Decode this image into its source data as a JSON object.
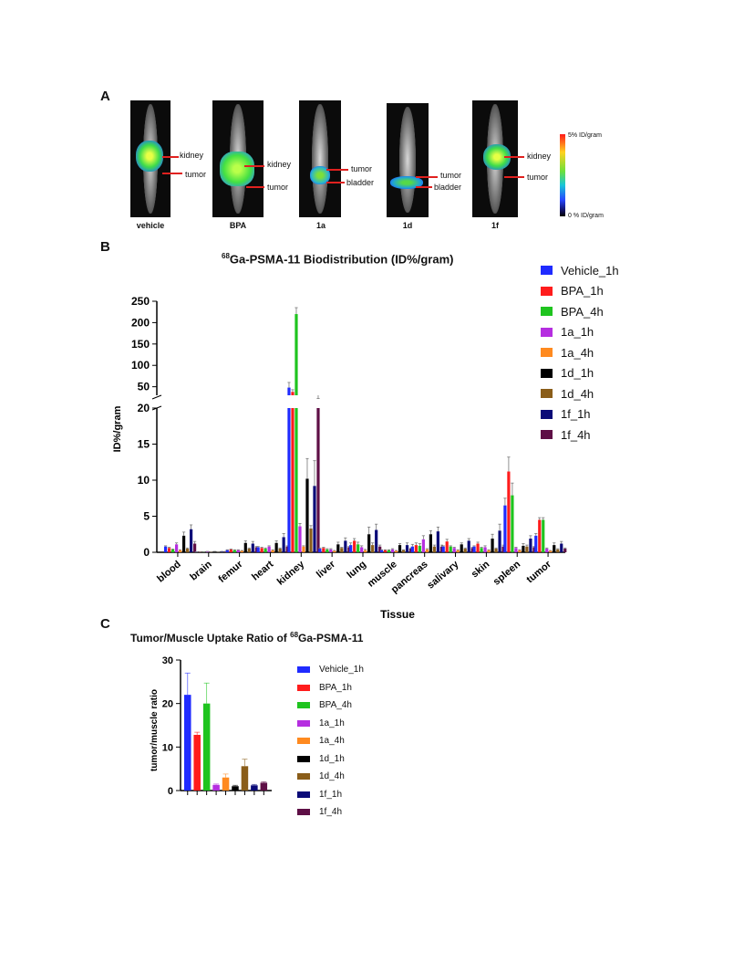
{
  "panels": {
    "a": "A",
    "b": "B",
    "c": "C"
  },
  "panel_a": {
    "images": [
      {
        "label": "vehicle",
        "annotations": [
          "kidney",
          "tumor"
        ]
      },
      {
        "label": "BPA",
        "annotations": [
          "kidney",
          "tumor"
        ]
      },
      {
        "label": "1a",
        "annotations": [
          "tumor",
          "bladder"
        ]
      },
      {
        "label": "1d",
        "annotations": [
          "tumor",
          "bladder"
        ]
      },
      {
        "label": "1f",
        "annotations": [
          "kidney",
          "tumor"
        ]
      }
    ],
    "colorbar": {
      "max_label": "5% ID/gram",
      "min_label": "0 % ID/gram"
    }
  },
  "chart_data": [
    {
      "type": "bar",
      "title_isotope": "68",
      "title": "Ga-PSMA-11 Biodistribution (ID%/gram)",
      "xlabel": "Tissue",
      "ylabel": "ID%/gram",
      "y_axis_break": {
        "lower_range": [
          0,
          20
        ],
        "upper_range": [
          30,
          250
        ]
      },
      "yticks_lower": [
        0,
        5,
        10,
        15,
        20
      ],
      "yticks_upper": [
        50,
        100,
        150,
        200,
        250
      ],
      "categories": [
        "blood",
        "brain",
        "femur",
        "heart",
        "kidney",
        "liver",
        "lung",
        "muscle",
        "pancreas",
        "salivary",
        "skin",
        "spleen",
        "tumor"
      ],
      "series": [
        {
          "name": "Vehicle_1h",
          "color": "#1f2bff",
          "values": [
            0.8,
            0.05,
            0.3,
            0.7,
            48,
            0.5,
            1.0,
            0.3,
            0.8,
            0.8,
            0.8,
            6.5,
            2.3
          ],
          "errors": [
            0.1,
            0.02,
            0.05,
            0.1,
            12,
            0.1,
            0.3,
            0.05,
            0.3,
            0.1,
            0.1,
            1.0,
            0.3
          ]
        },
        {
          "name": "BPA_1h",
          "color": "#ff1c1c",
          "values": [
            0.6,
            0.05,
            0.4,
            0.6,
            38,
            0.6,
            1.6,
            0.3,
            1.0,
            1.5,
            1.2,
            11.2,
            4.5
          ],
          "errors": [
            0.1,
            0.02,
            0.05,
            0.1,
            5,
            0.1,
            0.3,
            0.05,
            0.3,
            0.3,
            0.2,
            2.0,
            0.3
          ]
        },
        {
          "name": "BPA_4h",
          "color": "#1fc41f",
          "values": [
            0.4,
            0.05,
            0.3,
            0.5,
            220,
            0.4,
            1.1,
            0.3,
            0.9,
            0.8,
            0.6,
            7.9,
            4.5
          ],
          "errors": [
            0.05,
            0.02,
            0.05,
            0.1,
            15,
            0.1,
            0.3,
            0.05,
            0.3,
            0.1,
            0.1,
            1.7,
            0.3
          ]
        },
        {
          "name": "1a_1h",
          "color": "#b52ee0",
          "values": [
            1.1,
            0.1,
            0.3,
            0.8,
            3.6,
            0.4,
            0.7,
            0.4,
            1.8,
            0.6,
            0.7,
            0.6,
            0.5
          ],
          "errors": [
            0.2,
            0.02,
            0.05,
            0.1,
            0.4,
            0.1,
            0.2,
            0.1,
            0.5,
            0.1,
            0.2,
            0.1,
            0.1
          ]
        },
        {
          "name": "1a_4h",
          "color": "#ff8a1f",
          "values": [
            0.3,
            0.05,
            0.2,
            0.3,
            0.8,
            0.2,
            0.3,
            0.2,
            0.4,
            0.3,
            0.3,
            0.3,
            0.2
          ],
          "errors": [
            0.05,
            0.02,
            0.05,
            0.05,
            0.1,
            0.05,
            0.1,
            0.05,
            0.1,
            0.05,
            0.05,
            0.05,
            0.05
          ]
        },
        {
          "name": "1d_1h",
          "color": "#000000",
          "values": [
            2.3,
            0.1,
            1.3,
            1.3,
            10.2,
            1.1,
            2.5,
            1.0,
            2.5,
            1.1,
            1.9,
            0.9,
            1.0
          ],
          "errors": [
            0.5,
            0.02,
            0.3,
            0.3,
            2.8,
            0.3,
            1.0,
            0.2,
            0.5,
            0.2,
            0.6,
            0.3,
            0.3
          ]
        },
        {
          "name": "1d_4h",
          "color": "#8a5d19",
          "values": [
            0.5,
            0.05,
            0.5,
            0.5,
            3.3,
            0.6,
            1.0,
            0.3,
            0.8,
            0.5,
            0.5,
            0.8,
            0.4
          ],
          "errors": [
            0.1,
            0.02,
            0.1,
            0.1,
            0.4,
            0.1,
            0.3,
            0.05,
            0.2,
            0.1,
            0.1,
            0.2,
            0.1
          ]
        },
        {
          "name": "1f_1h",
          "color": "#0a0a78",
          "values": [
            3.2,
            0.1,
            1.2,
            2.1,
            9.2,
            1.6,
            3.1,
            1.0,
            2.9,
            1.6,
            3.0,
            1.9,
            1.2
          ],
          "errors": [
            0.6,
            0.02,
            0.3,
            0.5,
            3.5,
            0.4,
            0.8,
            0.3,
            0.6,
            0.3,
            0.9,
            0.4,
            0.3
          ]
        },
        {
          "name": "1f_4h",
          "color": "#5e0f46",
          "values": [
            1.2,
            0.1,
            0.7,
            0.8,
            20.5,
            0.7,
            0.8,
            0.5,
            0.8,
            0.6,
            0.8,
            0.7,
            0.5
          ],
          "errors": [
            0.3,
            0.02,
            0.1,
            0.1,
            2,
            0.1,
            0.2,
            0.1,
            0.2,
            0.1,
            0.2,
            0.1,
            0.1
          ]
        }
      ]
    },
    {
      "type": "bar",
      "title": "Tumor/Muscle Uptake Ratio of ",
      "title_isotope": "68",
      "title_suffix": "Ga-PSMA-11",
      "ylabel": "tumor/muscle ratio",
      "ylim": [
        0,
        30
      ],
      "yticks": [
        0,
        10,
        20,
        30
      ],
      "categories": [
        "Vehicle_1h",
        "BPA_1h",
        "BPA_4h",
        "1a_1h",
        "1a_4h",
        "1d_1h",
        "1d_4h",
        "1f_1h",
        "1f_4h"
      ],
      "colors": [
        "#1f2bff",
        "#ff1c1c",
        "#1fc41f",
        "#b52ee0",
        "#ff8a1f",
        "#000000",
        "#8a5d19",
        "#0a0a78",
        "#5e0f46"
      ],
      "values": [
        22,
        12.8,
        20,
        1.3,
        3.0,
        1.0,
        5.6,
        1.2,
        1.8
      ],
      "errors": [
        5,
        0.6,
        4.7,
        0.2,
        0.8,
        0.2,
        1.6,
        0.2,
        0.2
      ]
    }
  ]
}
